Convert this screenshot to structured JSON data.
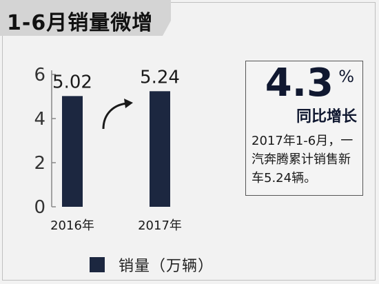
{
  "title": "1-6月销量微增",
  "colors": {
    "bar": "#1c2740",
    "title_bg": "#d4d4d4",
    "axis": "#888888"
  },
  "chart_data": {
    "type": "bar",
    "categories": [
      "2016年",
      "2017年"
    ],
    "values": [
      5.02,
      5.24
    ],
    "data_labels": [
      "5.02",
      "5.24"
    ],
    "ylim": [
      0,
      6
    ],
    "yticks": [
      "0",
      "2",
      "4",
      "6"
    ],
    "legend": "销量（万辆）",
    "legend_position": "bottom",
    "grid": false
  },
  "stat": {
    "number": "4.3",
    "unit": "%",
    "label": "同比增长",
    "description": "2017年1-6月，一汽奔腾累计销售新车5.24辆。"
  },
  "arrow_icon": "curved-up-arrow-icon"
}
